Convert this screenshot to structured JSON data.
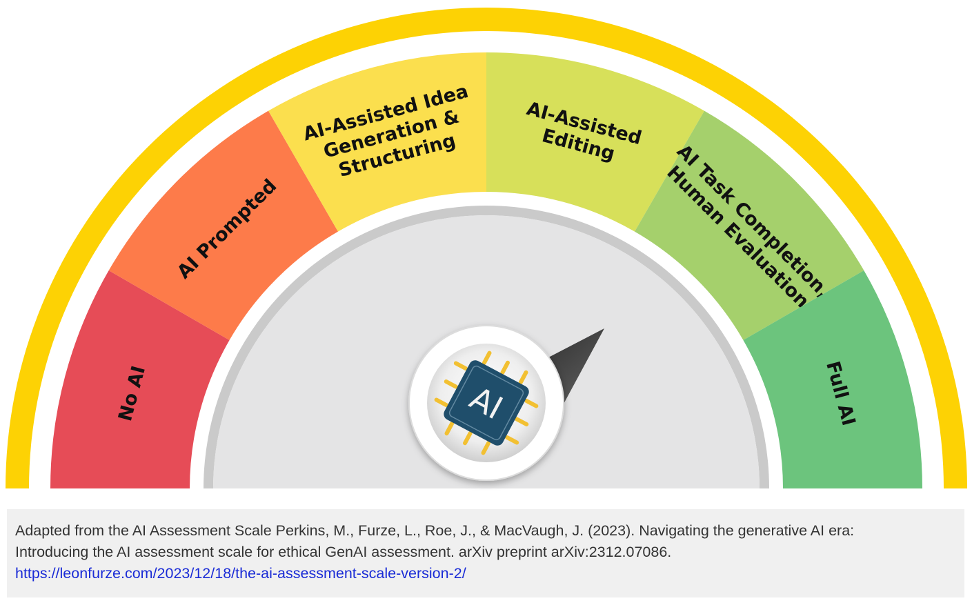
{
  "segments": [
    {
      "label_lines": [
        "No AI"
      ],
      "color": "#e64c57"
    },
    {
      "label_lines": [
        "AI Prompted"
      ],
      "color": "#fd7b4a"
    },
    {
      "label_lines": [
        "AI-Assisted Idea",
        "Generation &",
        "Structuring"
      ],
      "color": "#fbdf4e"
    },
    {
      "label_lines": [
        "AI-Assisted",
        "Editing"
      ],
      "color": "#d7e05a"
    },
    {
      "label_lines": [
        "AI Task Completion,",
        "Human Evaluation"
      ],
      "color": "#a5d06c"
    },
    {
      "label_lines": [
        "Full AI"
      ],
      "color": "#6cc47d"
    }
  ],
  "colors": {
    "outer_ring": "#fdd204",
    "inner_ring": "#cacaca",
    "dial_face": "#e4e4e5",
    "chip_body": "#1f4e6b",
    "chip_pins": "#f2c032",
    "needle": "#444444"
  },
  "chip": {
    "text": "AI",
    "icon": "ai-chip-icon"
  },
  "caption": {
    "line1": "Adapted from the AI Assessment Scale Perkins, M., Furze, L., Roe, J., & MacVaugh, J. (2023). Navigating the generative AI era:",
    "line2": "Introducing the AI assessment scale for ethical GenAI assessment. arXiv preprint arXiv:2312.07086.",
    "link": "https://leonfurze.com/2023/12/18/the-ai-assessment-scale-version-2/"
  }
}
